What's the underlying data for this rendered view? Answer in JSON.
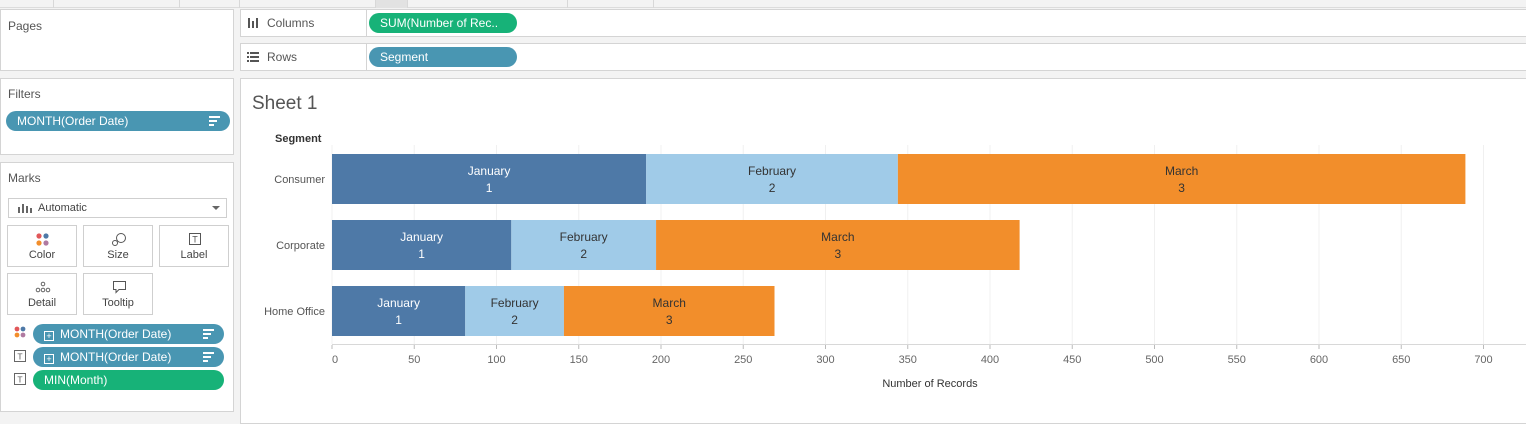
{
  "pages": {
    "title": "Pages"
  },
  "filters": {
    "title": "Filters",
    "pill": "MONTH(Order Date)"
  },
  "marks": {
    "title": "Marks",
    "mark_type": "Automatic",
    "buttons": {
      "color": "Color",
      "size": "Size",
      "label": "Label",
      "detail": "Detail",
      "tooltip": "Tooltip"
    },
    "encodings": [
      {
        "kind": "color-icon",
        "pill": "MONTH(Order Date)",
        "type": "blue"
      },
      {
        "kind": "label-icon",
        "pill": "MONTH(Order Date)",
        "type": "blue"
      },
      {
        "kind": "label-icon",
        "pill": "MIN(Month)",
        "type": "green"
      }
    ]
  },
  "shelves": {
    "columns_label": "Columns",
    "columns_pill": "SUM(Number of Rec..",
    "rows_label": "Rows",
    "rows_pill": "Segment"
  },
  "sheet": {
    "title": "Sheet 1"
  },
  "colors": {
    "January": "#4e79a7",
    "February": "#a0cbe8",
    "March": "#f28e2b",
    "blue_pill": "#4996b2",
    "green_pill": "#17b278"
  },
  "chart_data": {
    "type": "bar",
    "orientation": "horizontal",
    "stacked": true,
    "row_header": "Segment",
    "categories": [
      "Consumer",
      "Corporate",
      "Home Office"
    ],
    "series": [
      {
        "name": "January",
        "label": "1",
        "values": [
          191,
          109,
          81
        ]
      },
      {
        "name": "February",
        "label": "2",
        "values": [
          153,
          88,
          60
        ]
      },
      {
        "name": "March",
        "label": "3",
        "values": [
          345,
          221,
          128
        ]
      }
    ],
    "xlabel": "Number of Records",
    "xlim": [
      0,
      725
    ],
    "xticks": [
      0,
      50,
      100,
      150,
      200,
      250,
      300,
      350,
      400,
      450,
      500,
      550,
      600,
      650,
      700
    ],
    "grid": true
  }
}
